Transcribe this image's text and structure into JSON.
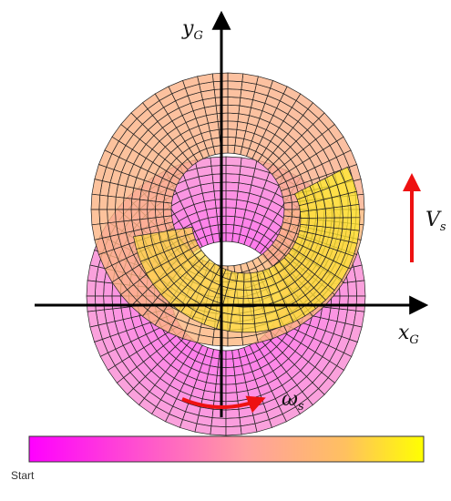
{
  "axes": {
    "x_label": "x",
    "x_subscript": "G",
    "y_label": "y",
    "y_subscript": "G"
  },
  "annotations": {
    "velocity_label": "V",
    "velocity_subscript": "s",
    "omega_label": "ω",
    "omega_subscript": "s"
  },
  "colorbar": {
    "start_label": "Start",
    "start_color": "#ff00ff",
    "end_color": "#ffff00"
  },
  "colors": {
    "arrow": "#ee1111",
    "axis": "#000000",
    "grid_line": "#222222"
  }
}
